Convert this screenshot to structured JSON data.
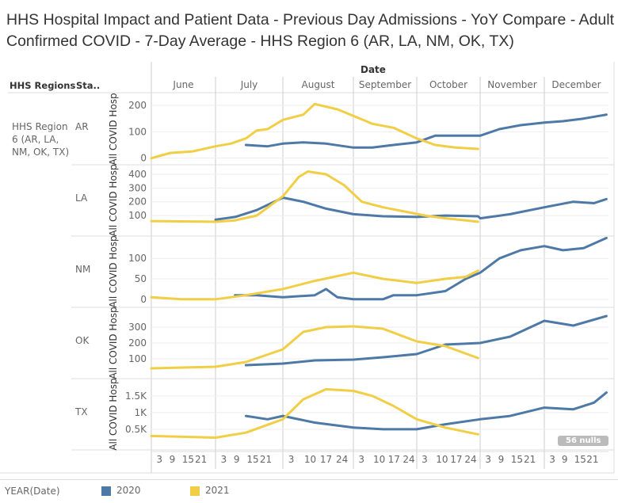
{
  "title": "HHS Hospital Impact and Patient Data - Previous Day Admissions - YoY Compare - Adult Confirmed COVID - 7-Day Average - HHS Region 6 (AR, LA, NM, OK, TX)",
  "header": {
    "date_label": "Date",
    "regions_label": "HHS Regions",
    "states_label": "Sta..",
    "region_name": "HHS Region 6 (AR, LA, NM, OK, TX)"
  },
  "nulls_badge": "56 nulls",
  "legend": {
    "title": "YEAR(Date)",
    "items": [
      {
        "label": "2020",
        "color": "#4e79a7"
      },
      {
        "label": "2021",
        "color": "#f1ce46"
      }
    ]
  },
  "chart_data": {
    "type": "line",
    "x_unit": "day since June 1",
    "months": [
      "June",
      "July",
      "August",
      "September",
      "October",
      "November",
      "December"
    ],
    "day_ticks": [
      [
        "3",
        "9",
        "15",
        "21"
      ],
      [
        "3",
        "9",
        "15",
        "21"
      ],
      [
        "3",
        "10",
        "17",
        "24"
      ],
      [
        "3",
        "10",
        "17",
        "24"
      ],
      [
        "3",
        "10",
        "17",
        "24"
      ],
      [
        "3",
        "9",
        "15",
        "21"
      ],
      [
        "3",
        "9",
        "15",
        "21"
      ]
    ],
    "ylabel": "All COVID Hosp",
    "panels": [
      {
        "state": "AR",
        "ylim": [
          -10,
          230
        ],
        "ticks": [
          {
            "v": 0,
            "label": "0"
          },
          {
            "v": 100,
            "label": "100"
          },
          {
            "v": 200,
            "label": "200"
          }
        ],
        "series": {
          "2020": [
            [
              44,
              50
            ],
            [
              54,
              45
            ],
            [
              61,
              55
            ],
            [
              70,
              60
            ],
            [
              80,
              55
            ],
            [
              92,
              40
            ],
            [
              101,
              40
            ],
            [
              111,
              50
            ],
            [
              122,
              60
            ],
            [
              131,
              85
            ],
            [
              141,
              85
            ],
            [
              153,
              85
            ],
            [
              162,
              110
            ],
            [
              172,
              125
            ],
            [
              183,
              135
            ],
            [
              192,
              140
            ],
            [
              202,
              150
            ],
            [
              213,
              165
            ]
          ],
          "2021": [
            [
              0,
              0
            ],
            [
              9,
              20
            ],
            [
              19,
              25
            ],
            [
              30,
              45
            ],
            [
              37,
              55
            ],
            [
              44,
              75
            ],
            [
              49,
              105
            ],
            [
              54,
              110
            ],
            [
              61,
              145
            ],
            [
              70,
              165
            ],
            [
              75,
              205
            ],
            [
              85,
              185
            ],
            [
              92,
              160
            ],
            [
              101,
              130
            ],
            [
              111,
              115
            ],
            [
              122,
              75
            ],
            [
              131,
              50
            ],
            [
              141,
              40
            ],
            [
              152,
              35
            ]
          ]
        }
      },
      {
        "state": "LA",
        "ylim": [
          -20,
          440
        ],
        "ticks": [
          {
            "v": 100,
            "label": "100"
          },
          {
            "v": 200,
            "label": "200"
          },
          {
            "v": 300,
            "label": "300"
          },
          {
            "v": 400,
            "label": "400"
          }
        ],
        "series": {
          "2020": [
            [
              30,
              70
            ],
            [
              39,
              90
            ],
            [
              49,
              140
            ],
            [
              61,
              230
            ],
            [
              70,
              200
            ],
            [
              80,
              150
            ],
            [
              92,
              110
            ],
            [
              106,
              95
            ],
            [
              122,
              90
            ],
            [
              136,
              100
            ],
            [
              152,
              95
            ],
            [
              153,
              80
            ],
            [
              167,
              110
            ],
            [
              183,
              160
            ],
            [
              197,
              200
            ],
            [
              207,
              190
            ],
            [
              213,
              220
            ]
          ],
          "2021": [
            [
              0,
              60
            ],
            [
              30,
              55
            ],
            [
              39,
              65
            ],
            [
              49,
              100
            ],
            [
              61,
              240
            ],
            [
              68,
              380
            ],
            [
              72,
              420
            ],
            [
              80,
              400
            ],
            [
              88,
              320
            ],
            [
              96,
              200
            ],
            [
              106,
              160
            ],
            [
              116,
              130
            ],
            [
              126,
              100
            ],
            [
              136,
              80
            ],
            [
              146,
              65
            ],
            [
              152,
              55
            ]
          ]
        }
      },
      {
        "state": "NM",
        "ylim": [
          -10,
          145
        ],
        "ticks": [
          {
            "v": 0,
            "label": "0"
          },
          {
            "v": 50,
            "label": "50"
          },
          {
            "v": 100,
            "label": "100"
          }
        ],
        "series": {
          "2020": [
            [
              39,
              10
            ],
            [
              49,
              10
            ],
            [
              61,
              5
            ],
            [
              75,
              10
            ],
            [
              80,
              25
            ],
            [
              85,
              5
            ],
            [
              92,
              0
            ],
            [
              106,
              0
            ],
            [
              111,
              10
            ],
            [
              122,
              10
            ],
            [
              136,
              20
            ],
            [
              146,
              50
            ],
            [
              153,
              65
            ],
            [
              162,
              100
            ],
            [
              172,
              120
            ],
            [
              183,
              130
            ],
            [
              192,
              120
            ],
            [
              202,
              125
            ],
            [
              213,
              150
            ]
          ],
          "2021": [
            [
              0,
              5
            ],
            [
              14,
              0
            ],
            [
              30,
              0
            ],
            [
              44,
              10
            ],
            [
              61,
              25
            ],
            [
              75,
              45
            ],
            [
              92,
              65
            ],
            [
              106,
              50
            ],
            [
              122,
              40
            ],
            [
              136,
              50
            ],
            [
              146,
              55
            ],
            [
              152,
              70
            ]
          ]
        }
      },
      {
        "state": "OK",
        "ylim": [
          0,
          400
        ],
        "ticks": [
          {
            "v": 100,
            "label": "100"
          },
          {
            "v": 200,
            "label": "200"
          },
          {
            "v": 300,
            "label": "300"
          }
        ],
        "series": {
          "2020": [
            [
              44,
              60
            ],
            [
              61,
              70
            ],
            [
              75,
              90
            ],
            [
              92,
              95
            ],
            [
              106,
              110
            ],
            [
              122,
              130
            ],
            [
              136,
              190
            ],
            [
              153,
              200
            ],
            [
              167,
              240
            ],
            [
              183,
              340
            ],
            [
              197,
              310
            ],
            [
              213,
              370
            ]
          ],
          "2021": [
            [
              0,
              40
            ],
            [
              30,
              50
            ],
            [
              44,
              80
            ],
            [
              61,
              160
            ],
            [
              70,
              270
            ],
            [
              80,
              300
            ],
            [
              92,
              305
            ],
            [
              106,
              290
            ],
            [
              122,
              210
            ],
            [
              136,
              180
            ],
            [
              152,
              105
            ]
          ]
        }
      },
      {
        "state": "TX",
        "ylim": [
          0,
          1900
        ],
        "ticks": [
          {
            "v": 500,
            "label": "0.5K"
          },
          {
            "v": 1000,
            "label": "1K"
          },
          {
            "v": 1500,
            "label": "1.5K"
          }
        ],
        "series": {
          "2020": [
            [
              44,
              900
            ],
            [
              54,
              800
            ],
            [
              61,
              900
            ],
            [
              75,
              700
            ],
            [
              92,
              550
            ],
            [
              106,
              500
            ],
            [
              122,
              500
            ],
            [
              136,
              650
            ],
            [
              153,
              800
            ],
            [
              167,
              900
            ],
            [
              183,
              1150
            ],
            [
              197,
              1100
            ],
            [
              207,
              1300
            ],
            [
              213,
              1600
            ]
          ],
          "2021": [
            [
              0,
              300
            ],
            [
              30,
              250
            ],
            [
              44,
              400
            ],
            [
              61,
              800
            ],
            [
              70,
              1400
            ],
            [
              80,
              1700
            ],
            [
              92,
              1650
            ],
            [
              101,
              1500
            ],
            [
              111,
              1200
            ],
            [
              122,
              800
            ],
            [
              136,
              550
            ],
            [
              152,
              350
            ]
          ]
        }
      }
    ]
  }
}
